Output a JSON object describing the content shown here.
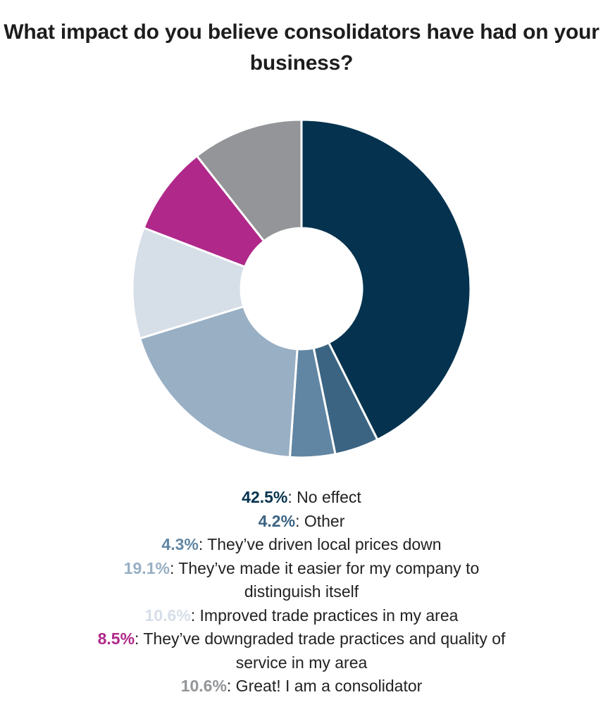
{
  "title": "What impact do you believe consolidators have had on your business?",
  "chart_data": {
    "type": "pie",
    "style": "donut",
    "start": "top, clockwise",
    "slices": [
      {
        "value": 42.5,
        "label": "42.5%",
        "category": "No effect",
        "color": "#05334f"
      },
      {
        "value": 4.2,
        "label": "4.2%",
        "category": "Other",
        "color": "#3b6482"
      },
      {
        "value": 4.3,
        "label": "4.3%",
        "category": "They’ve driven local prices down",
        "color": "#6186a3"
      },
      {
        "value": 19.1,
        "label": "19.1%",
        "category": "They’ve made it easier for my company to distinguish itself",
        "color": "#98afc4"
      },
      {
        "value": 10.6,
        "label": "10.6%",
        "category": "Improved trade practices in my area",
        "color": "#d6dee8"
      },
      {
        "value": 8.5,
        "label": "8.5%",
        "category": "They’ve downgraded trade practices and quality of service in my area",
        "color": "#b0288a"
      },
      {
        "value": 10.6,
        "label": "10.6%",
        "category": "Great! I am a consolidator",
        "color": "#939598"
      }
    ],
    "legend_placement": "bottom"
  }
}
